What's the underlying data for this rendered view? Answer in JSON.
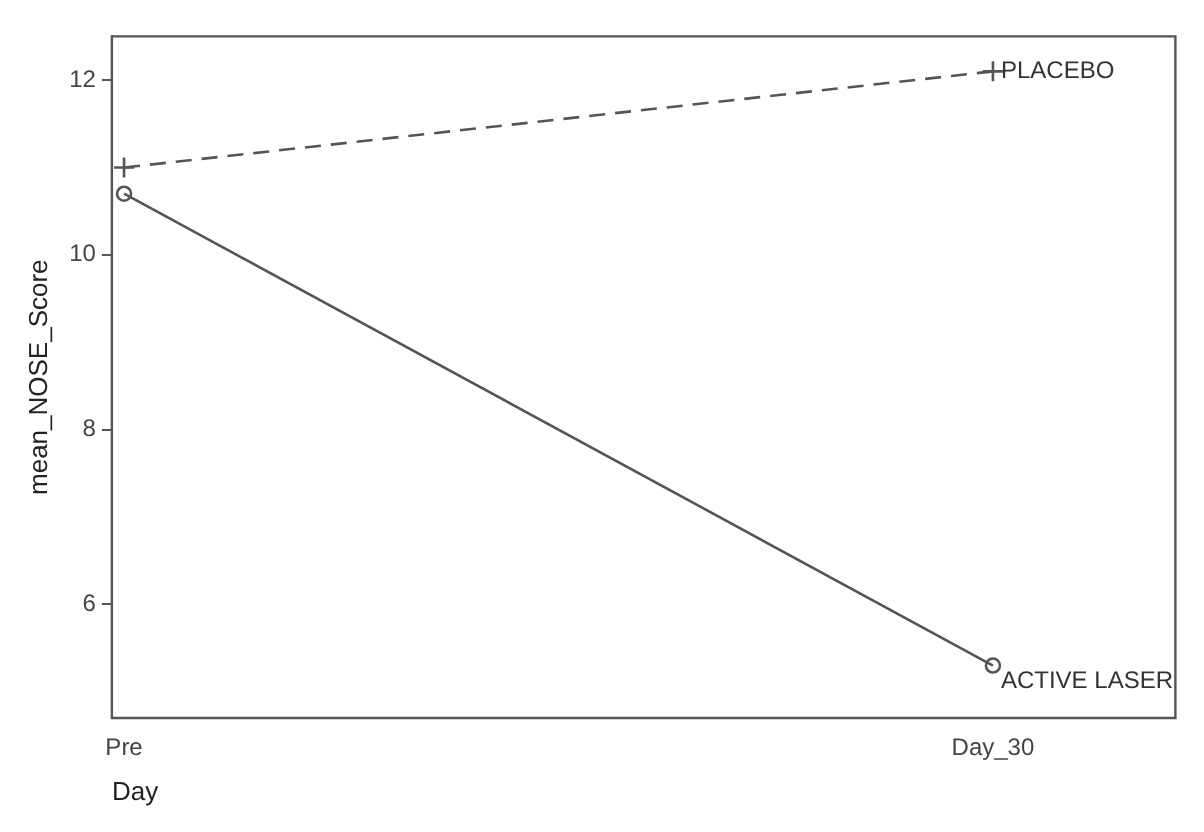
{
  "chart_data": {
    "type": "line",
    "xlabel": "Day",
    "ylabel": "mean_NOSE_Score",
    "categories": [
      "Pre",
      "Day_30"
    ],
    "series": [
      {
        "name": "PLACEBO",
        "color": "#555555",
        "values": [
          11.0,
          12.1
        ],
        "marker": "cross",
        "line_style": "dashed"
      },
      {
        "name": "ACTIVE LASER",
        "color": "#555555",
        "values": [
          10.7,
          5.3
        ],
        "marker": "circle",
        "line_style": "solid"
      }
    ],
    "ylim": [
      4.7,
      12.5
    ],
    "yticks": [
      6,
      8,
      10,
      12
    ],
    "grid": false,
    "legend": false
  }
}
